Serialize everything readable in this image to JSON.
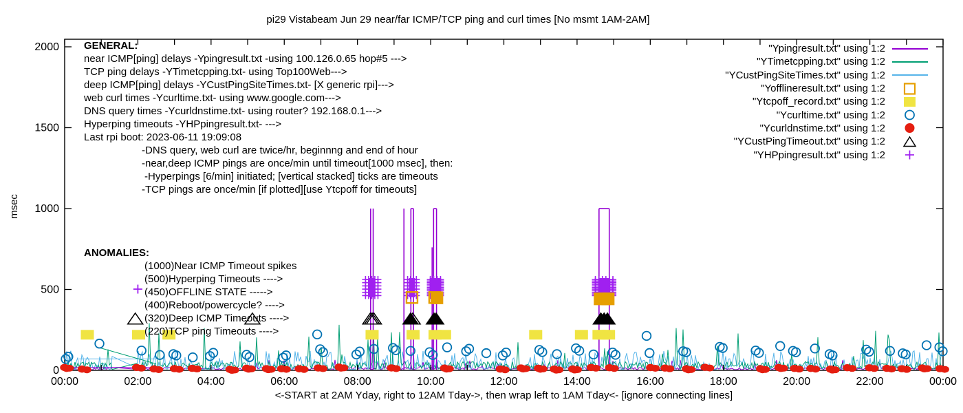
{
  "title": "pi29 Vistabeam Jun 29  near/far ICMP/TCP ping and curl times [No msmt 1AM-2AM]",
  "general": {
    "lines": [
      "GENERAL:",
      "near ICMP[ping] delays -Ypingresult.txt -using 100.126.0.65 hop#5 --->",
      "TCP ping delays -YTimetcpping.txt- using Top100Web--->",
      "deep ICMP[ping] delays -YCustPingSiteTimes.txt- [X generic rpi]--->",
      "web curl times -Ycurltime.txt- using www.google.com--->",
      "DNS query times -Ycurldnstime.txt- using router? 192.168.0.1--->",
      "Hyperping timeouts -YHPpingresult.txt- --->",
      "Last rpi boot: 2023-06-11 19:09:08",
      "-DNS query, web curl are twice/hr, beginnng and end of hour",
      "-near,deep ICMP pings are once/min until timeout[1000 msec], then:",
      "-Hyperpings [6/min] initiated; [vertical stacked] ticks are timeouts",
      "-TCP pings are once/min [if plotted][use Ytcpoff for timeouts]"
    ]
  },
  "anomalies": {
    "lines": [
      "ANOMALIES:",
      "(1000)Near ICMP Timeout spikes",
      "(500)Hyperping Timeouts ---->",
      "(450)OFFLINE STATE ----->",
      "(400)Reboot/powercycle? ---->",
      "(320)Deep ICMP Timeouts ---->",
      "(220)TCP ping Timeouts ---->"
    ]
  },
  "chart_data": {
    "type": "line",
    "title": "pi29 Vistabeam Jun 29  near/far ICMP/TCP ping and curl times [No msmt 1AM-2AM]",
    "xlabel": "<-START at 2AM Yday, right to 12AM Tday->, then wrap left to 1AM Tday<- [ignore connecting lines]",
    "ylabel": "msec",
    "ylim": [
      0,
      2000
    ],
    "x_hours_range": [
      0,
      24
    ],
    "y_ticks": [
      0,
      500,
      1000,
      1500,
      2000
    ],
    "x_major_tick_labels": [
      "00:00",
      "02:00",
      "04:00",
      "06:00",
      "08:00",
      "10:00",
      "12:00",
      "14:00",
      "16:00",
      "18:00",
      "20:00",
      "22:00",
      "00:00"
    ],
    "x_major_tick_every_hours": 2,
    "x_minor_tick_every_hours": 1,
    "grid": false,
    "legend_position": "top-right",
    "no_measurement_gap_hours": [
      1.32,
      1.93
    ],
    "colors": {
      "purple": "#9400d3",
      "plus_purple": "#a020f0",
      "green": "#009e73",
      "cyan": "#56b4e9",
      "orange": "#e69f00",
      "yellow": "#f0e442",
      "blue": "#0072b2",
      "red": "#e51e10",
      "black": "#000000"
    },
    "series": [
      {
        "label": "\"Ypingresult.txt\" using 1:2",
        "marker": "hline",
        "color": "#9400d3"
      },
      {
        "label": "\"YTimetcpping.txt\" using 1:2",
        "marker": "hline",
        "color": "#009e73"
      },
      {
        "label": "\"YCustPingSiteTimes.txt\" using 1:2",
        "marker": "hline",
        "color": "#56b4e9"
      },
      {
        "label": "\"Yofflineresult.txt\" using 1:2",
        "marker": "square-open",
        "color": "#e69f00"
      },
      {
        "label": "\"Ytcpoff_record.txt\" using 1:2",
        "marker": "square-filled",
        "color": "#f0e442"
      },
      {
        "label": "\"Ycurltime.txt\" using 1:2",
        "marker": "circle-open",
        "color": "#0072b2"
      },
      {
        "label": "\"Ycurldnstime.txt\" using 1:2",
        "marker": "circle-filled",
        "color": "#e51e10"
      },
      {
        "label": "\"YCustPingTimeout.txt\" using 1:2",
        "marker": "triangle-open",
        "color": "#000000"
      },
      {
        "label": "\"YHPpingresult.txt\" using 1:2",
        "marker": "plus",
        "color": "#a020f0"
      }
    ],
    "near_icmp_timeout_spikes": {
      "top_msec": 1000,
      "single_lines_hr": [
        8.36,
        8.43,
        9.27
      ],
      "boxed_pairs_hr": [
        [
          9.46,
          9.53
        ],
        [
          10.08,
          10.16
        ],
        [
          14.6,
          14.88
        ]
      ],
      "partial_lines": [
        {
          "hr": 10.04,
          "top_msec": 760
        }
      ]
    },
    "hyperping_timeout_clusters": {
      "levels_msec": [
        462,
        482,
        502,
        522,
        542,
        562
      ],
      "dense_extra_levels_msec": [
        472,
        492,
        512,
        532,
        552
      ],
      "clusters": [
        {
          "center_hr": 2.0,
          "half_width_hr": 0,
          "dense": false
        },
        {
          "center_hr": 8.39,
          "half_width_hr": 0.17,
          "dense": false
        },
        {
          "center_hr": 9.49,
          "half_width_hr": 0.12,
          "dense": false
        },
        {
          "center_hr": 10.13,
          "half_width_hr": 0.14,
          "dense": true
        },
        {
          "center_hr": 14.74,
          "half_width_hr": 0.24,
          "dense": true
        }
      ]
    },
    "offline_state_squares": [
      {
        "hr": 9.49,
        "msec": 450,
        "filled": false
      },
      {
        "hr": 10.11,
        "msec": 450,
        "filled": false
      },
      {
        "hr": 10.17,
        "msec": 448,
        "filled": true
      },
      {
        "hr": 14.63,
        "msec": 442,
        "filled": true
      },
      {
        "hr": 14.74,
        "msec": 442,
        "filled": true
      },
      {
        "hr": 14.85,
        "msec": 442,
        "filled": true
      }
    ],
    "tcp_ping_timeout_squares": {
      "msec": 220,
      "hours": [
        0.62,
        2.02,
        2.85,
        8.4,
        9.52,
        10.12,
        10.38,
        12.87,
        14.12,
        14.6,
        14.73,
        14.86
      ]
    },
    "deep_icmp_timeout_triangles": {
      "msec": 320,
      "points": [
        {
          "hr": 1.93,
          "filled": false
        },
        {
          "hr": 5.13,
          "filled": false
        },
        {
          "hr": 8.35,
          "filled": false
        },
        {
          "hr": 8.4,
          "filled": false
        },
        {
          "hr": 8.45,
          "filled": false
        },
        {
          "hr": 9.45,
          "filled": true
        },
        {
          "hr": 9.51,
          "filled": false
        },
        {
          "hr": 10.09,
          "filled": true
        },
        {
          "hr": 10.15,
          "filled": true
        },
        {
          "hr": 14.65,
          "filled": true
        },
        {
          "hr": 14.74,
          "filled": true
        },
        {
          "hr": 14.83,
          "filled": true
        }
      ]
    },
    "web_curl_circles_hr_msec": [
      [
        0.03,
        70
      ],
      [
        0.1,
        84
      ],
      [
        0.95,
        165
      ],
      [
        2.1,
        122
      ],
      [
        2.6,
        95
      ],
      [
        2.97,
        100
      ],
      [
        3.05,
        92
      ],
      [
        3.5,
        80
      ],
      [
        3.97,
        88
      ],
      [
        4.06,
        108
      ],
      [
        4.97,
        96
      ],
      [
        5.05,
        82
      ],
      [
        5.97,
        78
      ],
      [
        6.05,
        92
      ],
      [
        6.9,
        222
      ],
      [
        6.98,
        130
      ],
      [
        7.06,
        112
      ],
      [
        7.97,
        98
      ],
      [
        8.06,
        116
      ],
      [
        8.45,
        132
      ],
      [
        8.97,
        138
      ],
      [
        9.05,
        125
      ],
      [
        9.45,
        120
      ],
      [
        9.97,
        112
      ],
      [
        10.06,
        95
      ],
      [
        10.45,
        142
      ],
      [
        10.97,
        118
      ],
      [
        11.05,
        133
      ],
      [
        11.52,
        106
      ],
      [
        11.97,
        92
      ],
      [
        12.06,
        110
      ],
      [
        12.97,
        126
      ],
      [
        13.05,
        113
      ],
      [
        13.45,
        100
      ],
      [
        13.97,
        136
      ],
      [
        14.06,
        121
      ],
      [
        14.45,
        98
      ],
      [
        14.97,
        110
      ],
      [
        15.05,
        96
      ],
      [
        15.9,
        213
      ],
      [
        15.98,
        107
      ],
      [
        16.9,
        118
      ],
      [
        16.98,
        112
      ],
      [
        17.9,
        145
      ],
      [
        17.98,
        138
      ],
      [
        18.88,
        122
      ],
      [
        18.97,
        108
      ],
      [
        19.55,
        150
      ],
      [
        19.9,
        120
      ],
      [
        19.98,
        112
      ],
      [
        20.5,
        135
      ],
      [
        20.9,
        100
      ],
      [
        20.98,
        92
      ],
      [
        21.9,
        128
      ],
      [
        21.98,
        115
      ],
      [
        22.55,
        120
      ],
      [
        22.9,
        105
      ],
      [
        22.98,
        98
      ],
      [
        23.55,
        155
      ],
      [
        23.9,
        142
      ],
      [
        23.99,
        118
      ]
    ],
    "dns_dot_band": {
      "interval_hr": 0.5,
      "msec_range": [
        6,
        22
      ]
    },
    "noise_bands": {
      "near_icmp_purple": {
        "base_msec": [
          3,
          18
        ],
        "spike_msec": [
          25,
          65
        ],
        "spike_prob": 0.03
      },
      "tcp_green": {
        "base_msec": [
          6,
          54
        ],
        "spike_msec": [
          85,
          295
        ],
        "spike_prob": 0.055
      },
      "deep_cyan": {
        "base_msec": [
          6,
          121
        ],
        "bias_pow": 2.2
      }
    },
    "gap_connectors": [
      {
        "color_key": "cyan",
        "from": [
          0.4,
          70
        ],
        "to": [
          2.7,
          70
        ]
      },
      {
        "color_key": "green",
        "from": [
          0.95,
          140
        ],
        "to": [
          2.5,
          40
        ]
      },
      {
        "color_key": "purple",
        "from": [
          0.15,
          18
        ],
        "to": [
          2.6,
          18
        ]
      }
    ]
  }
}
